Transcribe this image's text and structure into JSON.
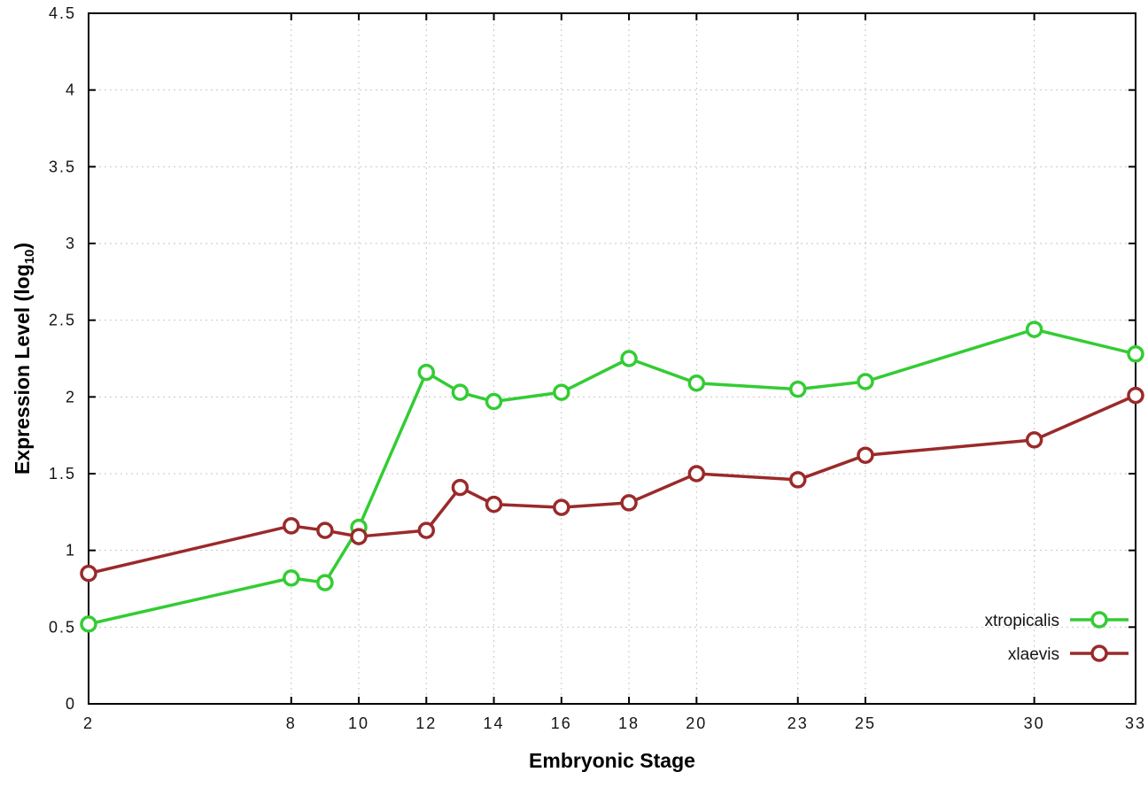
{
  "figure": {
    "background": "#ffffff",
    "grid_color": "#c6c6c6",
    "border_color": "#000000"
  },
  "chart_data": {
    "type": "line",
    "title": "",
    "xlabel": "Embryonic Stage",
    "ylabel_parts": {
      "main": "Expression Level (log",
      "sub": "10",
      "end": ")"
    },
    "xlim": [
      2,
      33
    ],
    "ylim": [
      0,
      4.5
    ],
    "xticks": [
      2,
      8,
      10,
      12,
      14,
      16,
      18,
      20,
      23,
      25,
      30,
      33
    ],
    "yticks": [
      0,
      0.5,
      1,
      1.5,
      2,
      2.5,
      3,
      3.5,
      4,
      4.5
    ],
    "ytick_labels": [
      "0",
      "0.5",
      "1",
      "1.5",
      "2",
      "2.5",
      "3",
      "3.5",
      "4",
      "4.5"
    ],
    "grid": true,
    "legend_position": "bottom-right-inside",
    "x": [
      2,
      8,
      9,
      10,
      12,
      13,
      14,
      16,
      18,
      20,
      23,
      25,
      30,
      33
    ],
    "series": [
      {
        "name": "xtropicalis",
        "color": "#33cc33",
        "marker": "open-circle",
        "values": [
          0.52,
          0.82,
          0.79,
          1.15,
          2.16,
          2.03,
          1.97,
          2.03,
          2.25,
          2.09,
          2.05,
          2.1,
          2.44,
          2.28
        ]
      },
      {
        "name": "xlaevis",
        "color": "#9a2a2a",
        "marker": "open-circle",
        "values": [
          0.85,
          1.16,
          1.13,
          1.09,
          1.13,
          1.41,
          1.3,
          1.28,
          1.31,
          1.5,
          1.46,
          1.62,
          1.72,
          2.01
        ]
      }
    ]
  }
}
